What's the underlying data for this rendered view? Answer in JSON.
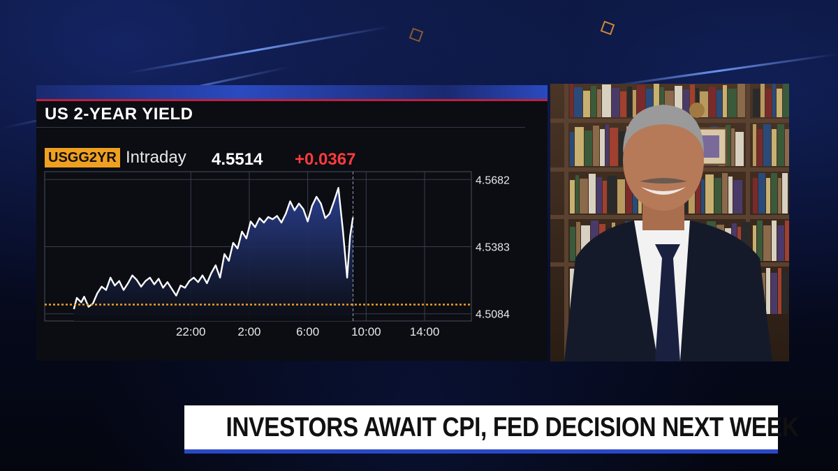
{
  "chart_data": {
    "type": "area",
    "title": "US 2-YEAR YIELD",
    "ticker": "USGG2YR",
    "period": "Intraday",
    "last_value": "4.5514",
    "change": "+0.0367",
    "x_tick_labels": [
      "22:00",
      "2:00",
      "6:00",
      "10:00",
      "14:00"
    ],
    "y_tick_labels": [
      "4.5682",
      "4.5383",
      "4.5084"
    ],
    "ylim": [
      4.5052,
      4.5717
    ],
    "reference_line": 4.5125,
    "current_marker_hour": 9.1,
    "grid": true,
    "series": [
      {
        "x": [
          -10.0,
          -9.8,
          -9.5,
          -9.3,
          -9.0,
          -8.7,
          -8.4,
          -8.1,
          -7.8,
          -7.5,
          -7.2,
          -6.9,
          -6.6,
          -6.3,
          -6.0,
          -5.7,
          -5.4,
          -5.1,
          -4.8,
          -4.5,
          -4.2,
          -3.9,
          -3.6,
          -3.3,
          -3.0,
          -2.7,
          -2.4,
          -2.1,
          -1.8,
          -1.5,
          -1.2,
          -0.9,
          -0.6,
          -0.3,
          0.0,
          0.3,
          0.6,
          0.9,
          1.2,
          1.5,
          1.8,
          2.1,
          2.4,
          2.7,
          3.0,
          3.3,
          3.6,
          3.9,
          4.2,
          4.5,
          4.8,
          5.1,
          5.4,
          5.7,
          6.0,
          6.3,
          6.6,
          6.9,
          7.2,
          7.5,
          7.8,
          8.1,
          8.4,
          8.7,
          8.9,
          9.1
        ],
        "values": [
          4.5105,
          4.5155,
          4.5135,
          4.516,
          4.5115,
          4.513,
          4.5175,
          4.5205,
          4.519,
          4.5245,
          4.521,
          4.523,
          4.519,
          4.522,
          4.5255,
          4.5235,
          4.5205,
          4.523,
          4.5245,
          4.5215,
          4.524,
          4.52,
          4.5225,
          4.5195,
          4.5165,
          4.521,
          4.52,
          4.523,
          4.5245,
          4.5225,
          4.5255,
          4.522,
          4.5265,
          4.53,
          4.5245,
          4.535,
          4.532,
          4.54,
          4.5375,
          4.545,
          4.542,
          4.5495,
          4.547,
          4.551,
          4.549,
          4.5515,
          4.5505,
          4.552,
          4.549,
          4.553,
          4.5585,
          4.5545,
          4.5575,
          4.555,
          4.5495,
          4.5565,
          4.5605,
          4.5575,
          4.551,
          4.553,
          4.5585,
          4.5645,
          4.546,
          4.5245,
          4.543,
          4.5514
        ]
      }
    ]
  },
  "lower_third": {
    "headline": "INVESTORS AWAIT CPI, FED DECISION NEXT WEEK"
  },
  "colors": {
    "area_fill": "#2a3f8f",
    "line": "#ffffff",
    "reference": "#f0a020",
    "ticker_bg": "#f0a020",
    "change": "#ff3b3b",
    "lower_third_bar": "#2a48c8"
  }
}
